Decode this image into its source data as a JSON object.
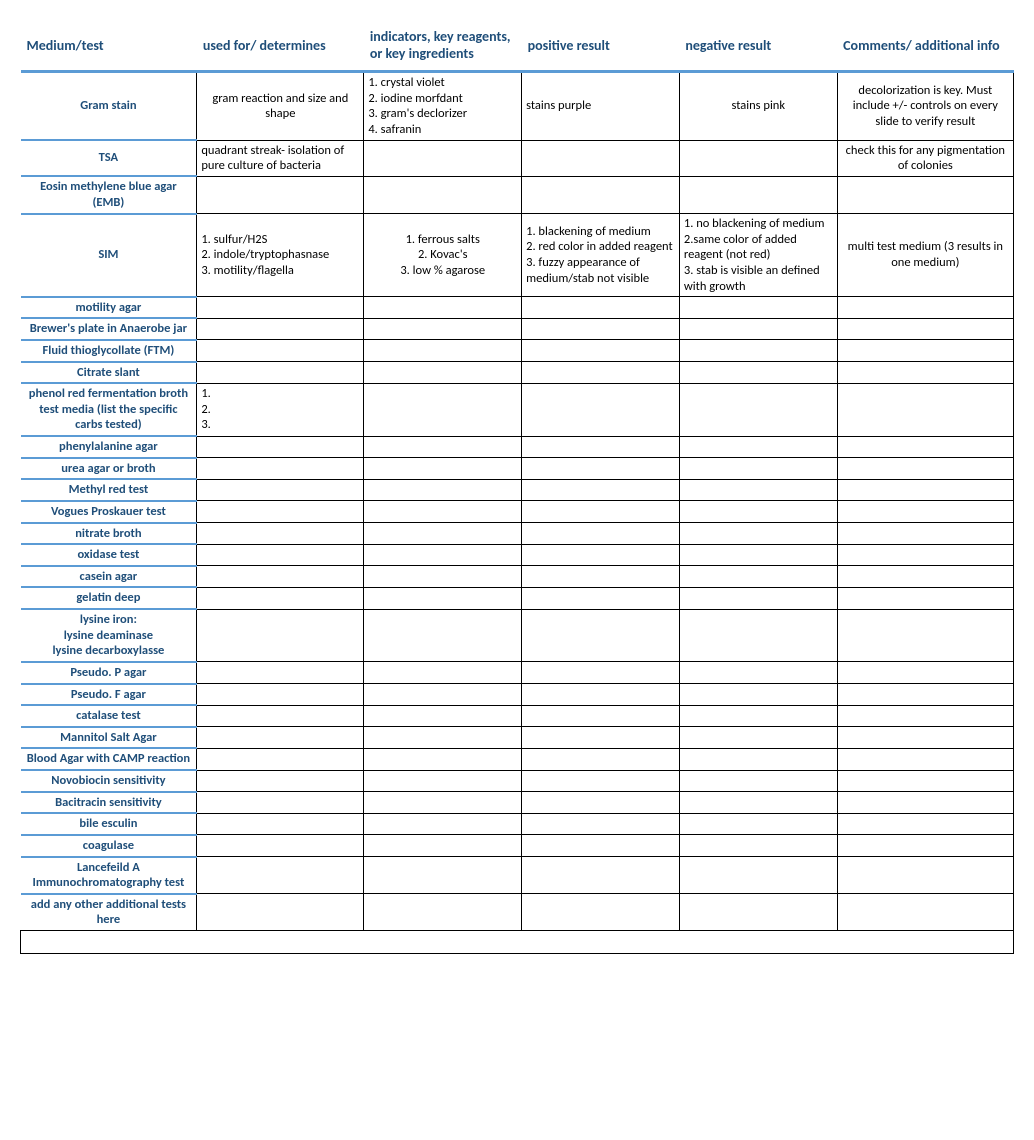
{
  "columns": [
    "Medium/test",
    "used for/ determines",
    "indicators,  key reagents, or key ingredients",
    "positive result",
    "negative result",
    "Comments/ additional info"
  ],
  "col_widths": [
    "19%",
    "18%",
    "17%",
    "17%",
    "17%",
    "19%"
  ],
  "header_color": "#1f4e79",
  "accent_color": "#5b9bd5",
  "rows": [
    {
      "name": "Gram stain",
      "used": "gram reaction and size and shape",
      "used_align": "center",
      "reagents": "1.   crystal violet\n2.  iodine morfdant\n3. gram's declorizer\n4. safranin",
      "pos": "stains purple",
      "neg": "stains pink",
      "neg_align": "center",
      "comments": "decolorization is key. Must include +/- controls on every slide to verify result",
      "comments_align": "center"
    },
    {
      "name": "TSA",
      "used": "quadrant streak-  isolation of pure culture of  bacteria",
      "reagents": "",
      "pos": "",
      "neg": "",
      "comments": "check this for any pigmentation of colonies",
      "comments_align": "center"
    },
    {
      "name": "Eosin methylene blue agar (EMB)",
      "used": "",
      "reagents": "",
      "pos": "",
      "neg": "",
      "comments": ""
    },
    {
      "name": "SIM",
      "used": "1.  sulfur/H2S\n2.  indole/tryptophasnase\n3.  motility/flagella",
      "reagents": "1. ferrous salts\n2. Kovac's\n3. low % agarose",
      "reagents_align": "center",
      "pos": "1.  blackening of medium\n2. red color in added reagent\n3.  fuzzy appearance of medium/stab not visible",
      "neg": "1.  no blackening of medium\n2.same color of added reagent (not red)\n3.  stab is visible an defined with growth",
      "comments": "multi test medium (3 results in one medium)",
      "comments_align": "center"
    },
    {
      "name": "motility agar",
      "used": "",
      "reagents": "",
      "pos": "",
      "neg": "",
      "comments": ""
    },
    {
      "name": "Brewer's plate in Anaerobe jar",
      "used": "",
      "reagents": "",
      "pos": "",
      "neg": "",
      "comments": ""
    },
    {
      "name": "Fluid thioglycollate (FTM)",
      "used": "",
      "reagents": "",
      "pos": "",
      "neg": "",
      "comments": ""
    },
    {
      "name": "Citrate slant",
      "used": "",
      "reagents": "",
      "pos": "",
      "neg": "",
      "comments": ""
    },
    {
      "name": "phenol red fermentation broth test media (list the specific carbs tested)",
      "used": "1.\n2.\n3.",
      "reagents": "",
      "pos": "",
      "neg": "",
      "comments": ""
    },
    {
      "name": "phenylalanine agar",
      "used": "",
      "reagents": "",
      "pos": "",
      "neg": "",
      "comments": ""
    },
    {
      "name": "urea agar or broth",
      "used": "",
      "reagents": "",
      "pos": "",
      "neg": "",
      "comments": ""
    },
    {
      "name": "Methyl red test",
      "used": "",
      "reagents": "",
      "pos": "",
      "neg": "",
      "comments": ""
    },
    {
      "name": "Vogues Proskauer test",
      "used": "",
      "reagents": "",
      "pos": "",
      "neg": "",
      "comments": ""
    },
    {
      "name": "nitrate broth",
      "used": "",
      "reagents": "",
      "pos": "",
      "neg": "",
      "comments": ""
    },
    {
      "name": "oxidase test",
      "used": "",
      "reagents": "",
      "pos": "",
      "neg": "",
      "comments": ""
    },
    {
      "name": "casein agar",
      "used": "",
      "reagents": "",
      "pos": "",
      "neg": "",
      "comments": ""
    },
    {
      "name": "gelatin deep",
      "used": "",
      "reagents": "",
      "pos": "",
      "neg": "",
      "comments": ""
    },
    {
      "name": "lysine iron:\nlysine deaminase\nlysine decarboxylasse",
      "used": "",
      "reagents": "",
      "pos": "",
      "neg": "",
      "comments": ""
    },
    {
      "name": "Pseudo. P agar",
      "used": "",
      "reagents": "",
      "pos": "",
      "neg": "",
      "comments": ""
    },
    {
      "name": "Pseudo. F  agar",
      "used": "",
      "reagents": "",
      "pos": "",
      "neg": "",
      "comments": ""
    },
    {
      "name": "catalase test",
      "used": "",
      "reagents": "",
      "pos": "",
      "neg": "",
      "comments": ""
    },
    {
      "name": "Mannitol Salt Agar",
      "used": "",
      "reagents": "",
      "pos": "",
      "neg": "",
      "comments": ""
    },
    {
      "name": "Blood Agar with CAMP reaction",
      "used": "",
      "reagents": "",
      "pos": "",
      "neg": "",
      "comments": ""
    },
    {
      "name": "Novobiocin sensitivity",
      "used": "",
      "reagents": "",
      "pos": "",
      "neg": "",
      "comments": ""
    },
    {
      "name": "Bacitracin sensitivity",
      "used": "",
      "reagents": "",
      "pos": "",
      "neg": "",
      "comments": ""
    },
    {
      "name": "bile esculin",
      "used": "",
      "reagents": "",
      "pos": "",
      "neg": "",
      "comments": ""
    },
    {
      "name": "coagulase",
      "used": "",
      "reagents": "",
      "pos": "",
      "neg": "",
      "comments": ""
    },
    {
      "name": "Lancefeild A Immunochromatography test",
      "used": "",
      "reagents": "",
      "pos": "",
      "neg": "",
      "comments": ""
    },
    {
      "name": "add any other additional tests  here",
      "used": "",
      "reagents": "",
      "pos": "",
      "neg": "",
      "comments": ""
    }
  ]
}
